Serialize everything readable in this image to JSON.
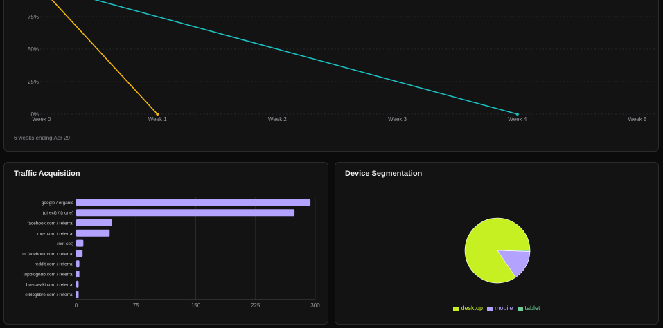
{
  "retention": {
    "caption": "6 weeks ending Apr 29"
  },
  "traffic": {
    "title": "Traffic Acquisition"
  },
  "device": {
    "title": "Device Segmentation"
  },
  "chart_data": [
    {
      "type": "line",
      "x": [
        "Week 0",
        "Week 1",
        "Week 2",
        "Week 3",
        "Week 4",
        "Week 5"
      ],
      "y_ticks": [
        "0%",
        "25%",
        "50%",
        "75%"
      ],
      "ylim": [
        0,
        75
      ],
      "series": [
        {
          "color": "#f5b90f",
          "values": [
            100,
            0,
            null,
            null,
            null,
            null
          ]
        },
        {
          "color": "#1bc1c1",
          "values": [
            100,
            75,
            50,
            25,
            0,
            null
          ]
        }
      ],
      "grid": true
    },
    {
      "type": "bar",
      "orientation": "horizontal",
      "categories": [
        "google / organic",
        "(direct) / (none)",
        "facebook.com / referral",
        "moz.com / referral",
        "(not set)",
        "m.facebook.com / referral",
        "reddit.com / referral",
        "topbloghub.com / referral",
        "buscawiki.com / referral",
        "elbloglibre.com / referral"
      ],
      "values": [
        294,
        274,
        45,
        42,
        9,
        8,
        4,
        4,
        3,
        3
      ],
      "x_ticks": [
        "0",
        "75",
        "150",
        "225",
        "300"
      ],
      "xlim": [
        0,
        300
      ],
      "color": "#b3a3ff",
      "grid": true
    },
    {
      "type": "pie",
      "labels": [
        "desktop",
        "mobile",
        "tablet"
      ],
      "values": [
        84.5,
        15.0,
        0.5
      ],
      "colors": [
        "#c6f022",
        "#b3a3ff",
        "#6fcf97"
      ],
      "legend": "bottom"
    }
  ]
}
